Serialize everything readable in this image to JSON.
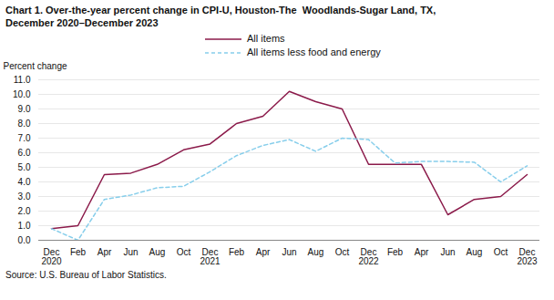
{
  "chart_data": {
    "type": "line",
    "title": "Chart 1. Over-the-year percent change in CPI-U, Houston-The  Woodlands-Sugar Land, TX,",
    "subtitle": "December 2020–December 2023",
    "ylabel": "Percent change",
    "caption": "Source: U.S. Bureau of Labor Statistics.",
    "categories": [
      "Dec\n2020",
      "Feb",
      "Apr",
      "Jun",
      "Aug",
      "Oct",
      "Dec\n2021",
      "Feb",
      "Apr",
      "Jun",
      "Aug",
      "Oct",
      "Dec\n2022",
      "Feb",
      "Apr",
      "Jun",
      "Aug",
      "Oct",
      "Dec\n2023"
    ],
    "series": [
      {
        "name": "All items",
        "color": "#8B1A4A",
        "line_style": "solid",
        "values": [
          0.8,
          1.0,
          4.5,
          4.6,
          5.2,
          6.2,
          6.6,
          8.0,
          8.5,
          10.2,
          9.5,
          9.0,
          5.2,
          5.2,
          5.2,
          1.75,
          2.8,
          3.0,
          4.5
        ]
      },
      {
        "name": "All items less food and energy",
        "color": "#87CEEB",
        "line_style": "dashed",
        "values": [
          0.8,
          0.0,
          2.8,
          3.1,
          3.6,
          3.7,
          4.7,
          5.8,
          6.5,
          6.9,
          6.1,
          7.0,
          6.9,
          5.3,
          5.4,
          5.4,
          5.35,
          4.0,
          5.1
        ]
      }
    ],
    "ylim": [
      0.0,
      11.0
    ],
    "yticks": [
      {
        "value": 0,
        "label": "0.0"
      },
      {
        "value": 1,
        "label": "1.0"
      },
      {
        "value": 2,
        "label": "2.0"
      },
      {
        "value": 3,
        "label": "3.0"
      },
      {
        "value": 4,
        "label": "4.0"
      },
      {
        "value": 5,
        "label": "5.0"
      },
      {
        "value": 6,
        "label": "6.0"
      },
      {
        "value": 7,
        "label": "7.0"
      },
      {
        "value": 8,
        "label": "8.0"
      },
      {
        "value": 9,
        "label": "9.0"
      },
      {
        "value": 10,
        "label": "10.0"
      },
      {
        "value": 11,
        "label": "11.0"
      }
    ],
    "grid": true,
    "legend": "top"
  }
}
